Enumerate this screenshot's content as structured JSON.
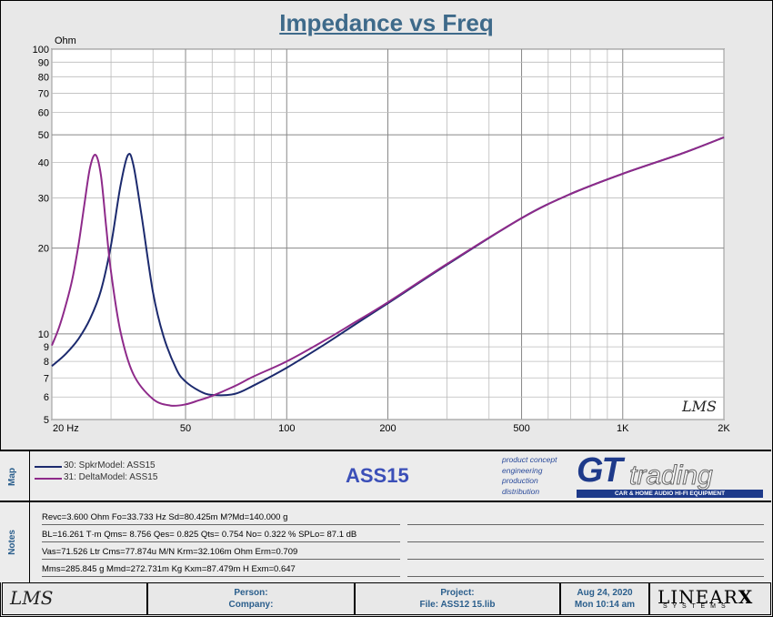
{
  "title": "Impedance vs Freq",
  "chart_data": {
    "type": "line",
    "title": "Impedance vs Freq",
    "ylabel": "Ohm",
    "xlabel": "",
    "x_scale": "log",
    "y_scale": "log",
    "xlim": [
      20,
      2000
    ],
    "ylim": [
      5,
      100
    ],
    "grid": true,
    "y_ticks": [
      {
        "v": 100,
        "label": "100"
      },
      {
        "v": 90,
        "label": "90"
      },
      {
        "v": 80,
        "label": "80"
      },
      {
        "v": 70,
        "label": "70"
      },
      {
        "v": 60,
        "label": "60"
      },
      {
        "v": 50,
        "label": "50"
      },
      {
        "v": 40,
        "label": "40"
      },
      {
        "v": 30,
        "label": "30"
      },
      {
        "v": 20,
        "label": "20"
      },
      {
        "v": 10,
        "label": "10"
      },
      {
        "v": 9,
        "label": "9"
      },
      {
        "v": 8,
        "label": "8"
      },
      {
        "v": 7,
        "label": "7"
      },
      {
        "v": 6,
        "label": "6"
      },
      {
        "v": 5,
        "label": "5"
      }
    ],
    "x_ticks": [
      {
        "v": 20,
        "label": "20  Hz"
      },
      {
        "v": 50,
        "label": "50"
      },
      {
        "v": 100,
        "label": "100"
      },
      {
        "v": 200,
        "label": "200"
      },
      {
        "v": 500,
        "label": "500"
      },
      {
        "v": 1000,
        "label": "1K"
      },
      {
        "v": 2000,
        "label": "2K"
      }
    ],
    "series": [
      {
        "name": "30: SpkrModel: ASS15",
        "color": "#1c2a6e",
        "x": [
          20,
          22,
          24,
          26,
          28,
          30,
          32,
          33.7,
          35,
          37,
          40,
          43,
          47,
          50,
          55,
          60,
          70,
          80,
          100,
          130,
          160,
          200,
          300,
          500,
          700,
          1000,
          1500,
          2000
        ],
        "y": [
          7.7,
          8.5,
          9.6,
          11.3,
          14.2,
          20.5,
          33,
          42.5,
          39,
          26,
          14,
          9.8,
          7.5,
          6.8,
          6.3,
          6.1,
          6.15,
          6.6,
          7.6,
          9.2,
          10.8,
          12.8,
          17.5,
          25.5,
          31,
          36.5,
          43,
          49
        ]
      },
      {
        "name": "31: DeltaModel: ASS15",
        "color": "#8e2a8a",
        "x": [
          20,
          21,
          22,
          23,
          24,
          25,
          26,
          27,
          28,
          29,
          30,
          32,
          35,
          40,
          45,
          50,
          55,
          60,
          70,
          80,
          100,
          130,
          160,
          200,
          300,
          500,
          700,
          1000,
          1500,
          2000
        ],
        "y": [
          9.1,
          10.5,
          12.6,
          15.5,
          20.5,
          28.5,
          38.5,
          42.5,
          36,
          24,
          16.5,
          10.2,
          7.2,
          5.9,
          5.6,
          5.65,
          5.85,
          6.05,
          6.55,
          7.1,
          8.0,
          9.5,
          11.0,
          12.9,
          17.6,
          25.5,
          31,
          36.5,
          43,
          49
        ]
      }
    ]
  },
  "watermark": "LMS",
  "map": {
    "label": "Map",
    "legend": [
      {
        "text": "30: SpkrModel: ASS15",
        "color": "#1c2a6e"
      },
      {
        "text": "31: DeltaModel: ASS15",
        "color": "#8e2a8a"
      }
    ],
    "center_title": "ASS15",
    "logo_lines": [
      "product concept",
      "engineering",
      "production",
      "distribution"
    ],
    "logo_brand": "GT",
    "logo_brand2": "trading",
    "logo_tagline": "CAR & HOME AUDIO HI-FI EQUIPMENT"
  },
  "notes": {
    "label": "Notes",
    "rows": [
      "Revc=3.600 Ohm  Fo=33.733 Hz  Sd=80.425m M?Md=140.000 g",
      "BL=16.261 T·m  Qms= 8.756  Qes= 0.825  Qts= 0.754  No= 0.322 %  SPLo= 87.1 dB",
      "Vas=71.526 Ltr  Cms=77.874u M/N  Krm=32.106m Ohm  Erm=0.709",
      "Mms=285.845 g  Mmd=272.731m Kg  Kxm=87.479m H  Exm=0.647"
    ]
  },
  "footer": {
    "logo": "LMS",
    "person_label": "Person:",
    "company_label": "Company:",
    "project_label": "Project:",
    "file_label": "File: ASS12 15.lib",
    "date": "Aug 24, 2020",
    "time": "Mon 10:14 am",
    "brand_top": "LINEAR",
    "brand_x": "X",
    "brand_sub": "S Y S T E M S"
  }
}
